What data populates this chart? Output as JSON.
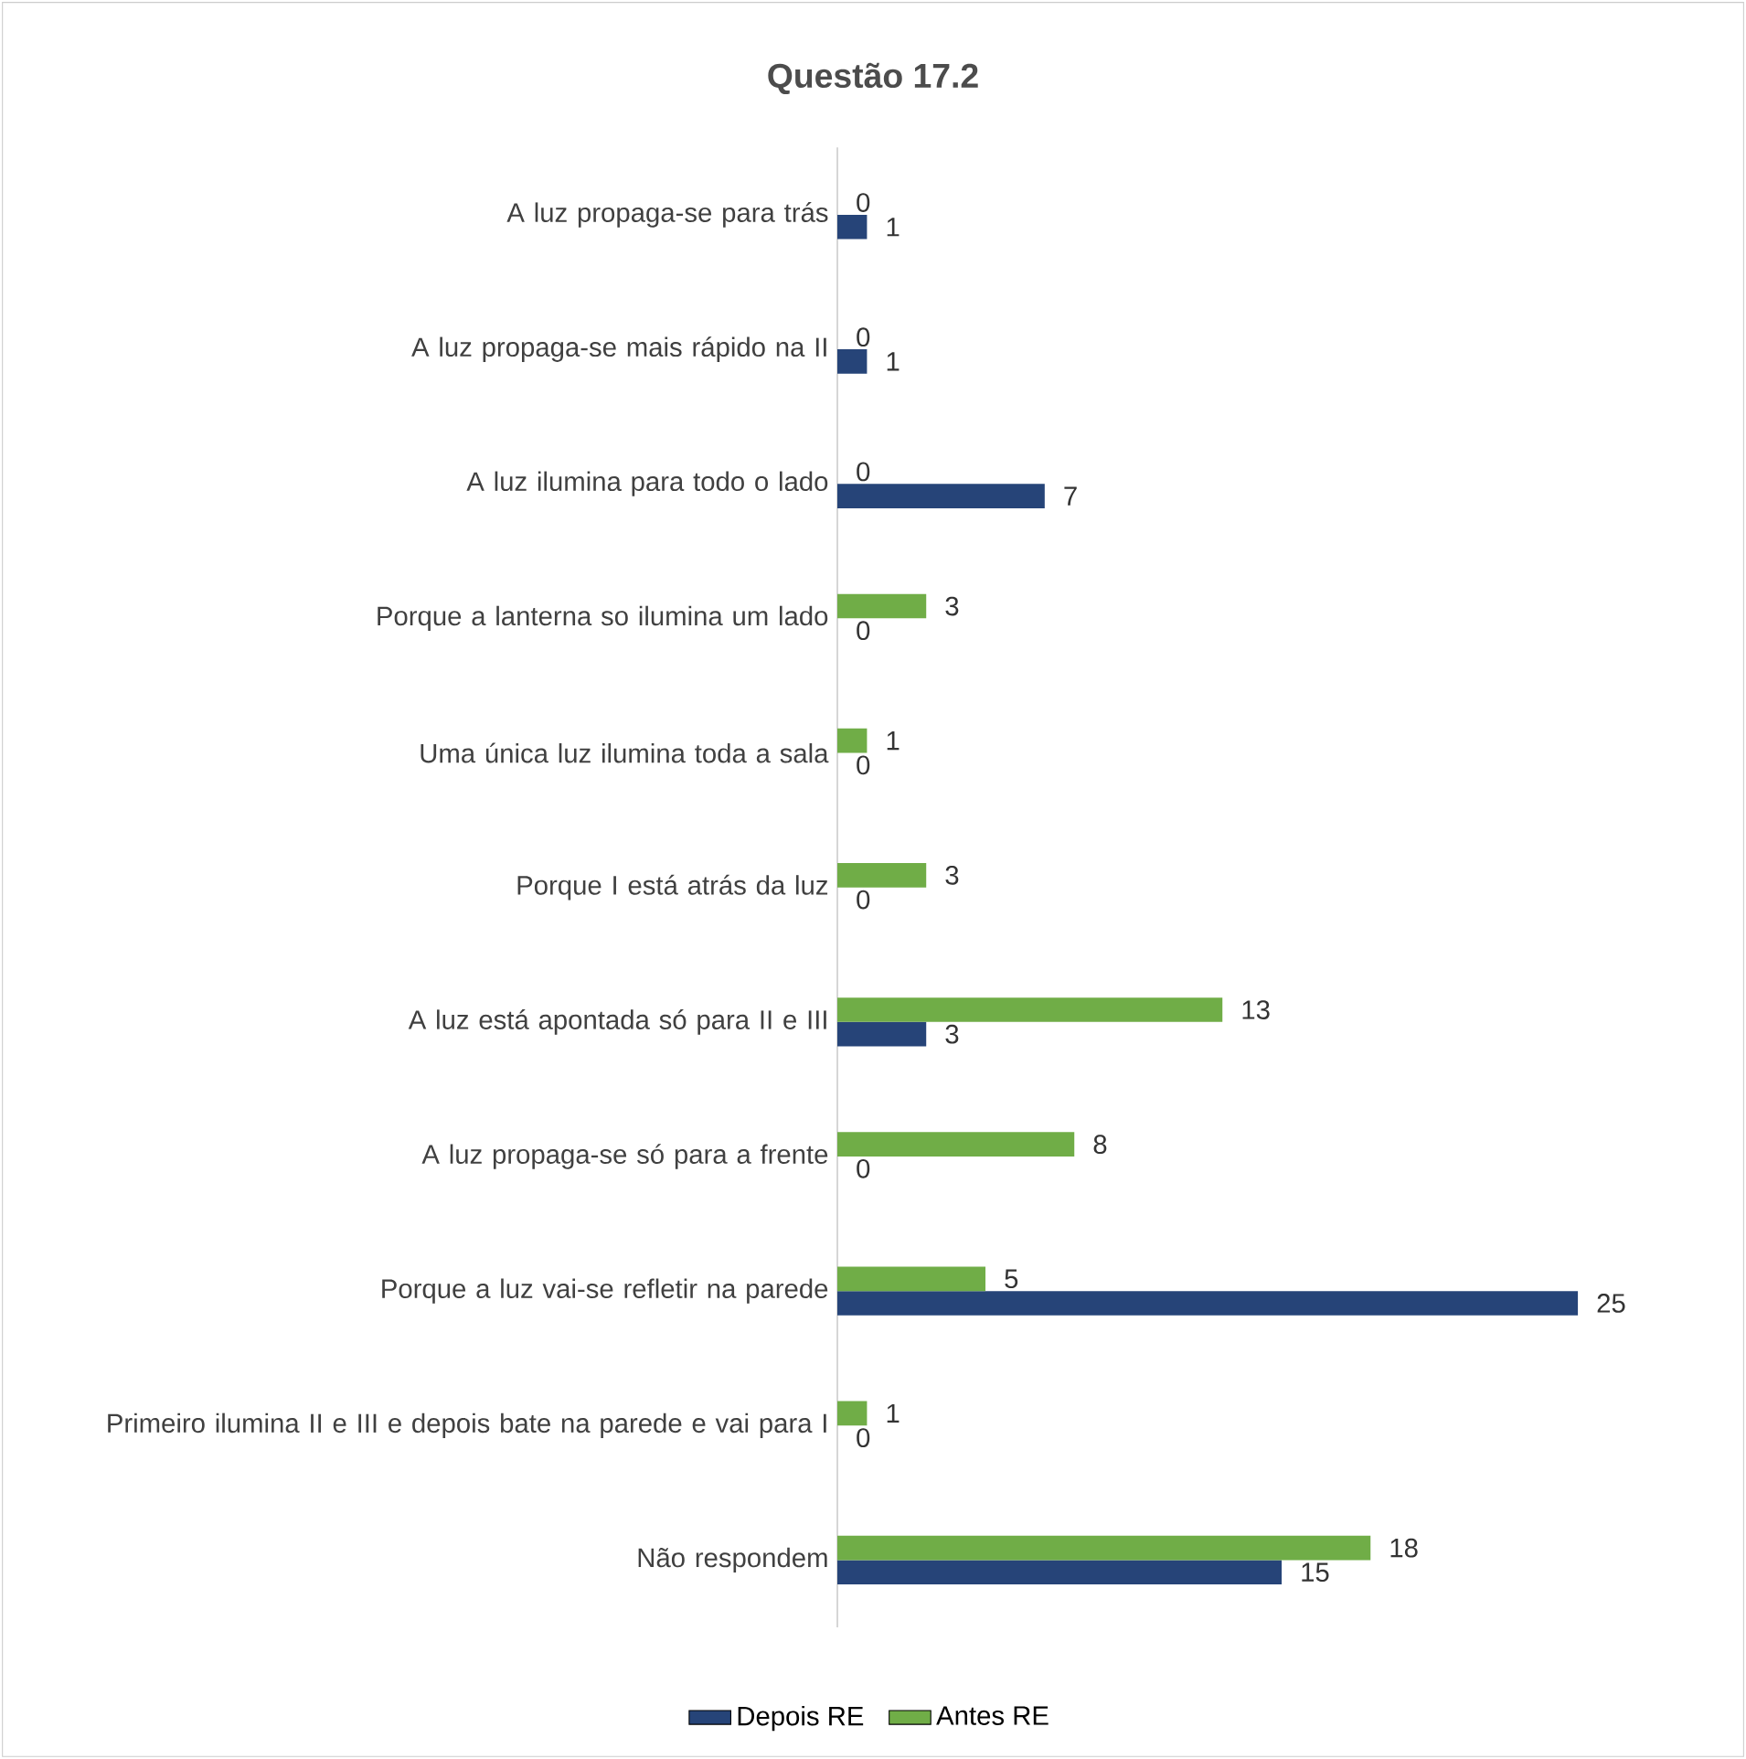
{
  "chart_data": {
    "type": "bar",
    "orientation": "horizontal",
    "title": "Questão 17.2",
    "categories": [
      "A luz propaga-se para trás",
      "A luz propaga-se mais rápido na II",
      "A luz ilumina para todo o lado",
      "Porque a lanterna so ilumina um lado",
      "Uma única luz ilumina toda a sala",
      "Porque I está atrás da luz",
      "A luz está apontada só para II e III",
      "A luz propaga-se só para a frente",
      "Porque a luz vai-se refletir na parede",
      "Primeiro ilumina II e III e depois bate na parede e vai para I",
      "Não respondem"
    ],
    "series": [
      {
        "name": "Depois RE",
        "color": "#264478",
        "values": [
          1,
          1,
          7,
          0,
          0,
          0,
          3,
          0,
          25,
          0,
          15
        ]
      },
      {
        "name": "Antes RE",
        "color": "#70ad47",
        "values": [
          0,
          0,
          0,
          3,
          1,
          3,
          13,
          8,
          5,
          1,
          18
        ]
      }
    ],
    "data_labels": true,
    "legend": "bottom"
  }
}
